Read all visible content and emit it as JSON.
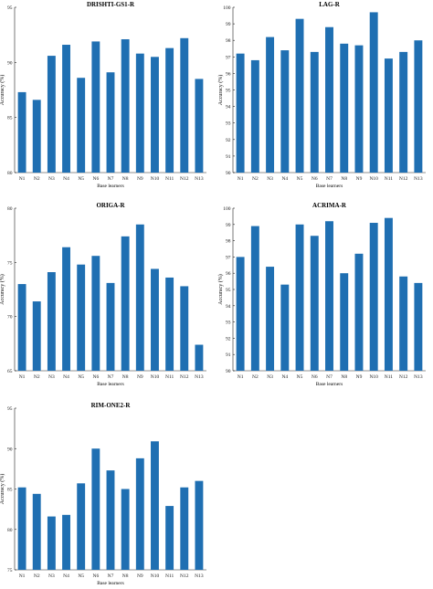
{
  "chart_data": [
    {
      "type": "bar",
      "title": "DRISHTI-GS1-R",
      "xlabel": "Base learners",
      "ylabel": "Accuracy (%)",
      "ylim": [
        80,
        95
      ],
      "yticks": [
        80,
        85,
        90,
        95
      ],
      "grid": false,
      "categories": [
        "N1",
        "N2",
        "N3",
        "N4",
        "N5",
        "N6",
        "N7",
        "N8",
        "N9",
        "N10",
        "N11",
        "N12",
        "N13"
      ],
      "values": [
        87.3,
        86.6,
        90.6,
        91.6,
        88.6,
        91.9,
        89.1,
        92.1,
        90.8,
        90.5,
        91.3,
        92.2,
        88.5
      ]
    },
    {
      "type": "bar",
      "title": "LAG-R",
      "xlabel": "Base learners",
      "ylabel": "Accuracy (%)",
      "ylim": [
        90,
        100
      ],
      "yticks": [
        90,
        91,
        92,
        93,
        94,
        95,
        96,
        97,
        98,
        99,
        100
      ],
      "grid": false,
      "categories": [
        "N1",
        "N2",
        "N3",
        "N4",
        "N5",
        "N6",
        "N7",
        "N8",
        "N9",
        "N10",
        "N11",
        "N12",
        "N13"
      ],
      "values": [
        97.2,
        96.8,
        98.2,
        97.4,
        99.3,
        97.3,
        98.8,
        97.8,
        97.7,
        99.7,
        96.9,
        97.3,
        98.0
      ]
    },
    {
      "type": "bar",
      "title": "ORIGA-R",
      "xlabel": "Base learners",
      "ylabel": "Accuracy (%)",
      "ylim": [
        65,
        80
      ],
      "yticks": [
        65,
        70,
        75,
        80
      ],
      "grid": false,
      "categories": [
        "N1",
        "N2",
        "N3",
        "N4",
        "N5",
        "N6",
        "N7",
        "N8",
        "N9",
        "N10",
        "N11",
        "N12",
        "N13"
      ],
      "values": [
        73.0,
        71.4,
        74.1,
        76.4,
        74.8,
        75.6,
        73.1,
        77.4,
        78.5,
        74.4,
        73.6,
        72.8,
        67.4
      ]
    },
    {
      "type": "bar",
      "title": "ACRIMA-R",
      "xlabel": "Base learners",
      "ylabel": "Accuracy (%)",
      "ylim": [
        90,
        100
      ],
      "yticks": [
        90,
        91,
        92,
        93,
        94,
        95,
        96,
        97,
        98,
        99,
        100
      ],
      "grid": false,
      "categories": [
        "N1",
        "N2",
        "N3",
        "N4",
        "N5",
        "N6",
        "N7",
        "N8",
        "N9",
        "N10",
        "N11",
        "N12",
        "N13"
      ],
      "values": [
        97.0,
        98.9,
        96.4,
        95.3,
        99.0,
        98.3,
        99.2,
        96.0,
        97.2,
        99.1,
        99.4,
        95.8,
        95.4
      ]
    },
    {
      "type": "bar",
      "title": "RIM-ONE2-R",
      "xlabel": "Base learners",
      "ylabel": "Accuracy (%)",
      "ylim": [
        75,
        95
      ],
      "yticks": [
        75,
        80,
        85,
        90,
        95
      ],
      "grid": false,
      "categories": [
        "N1",
        "N2",
        "N3",
        "N4",
        "N5",
        "N6",
        "N7",
        "N8",
        "N9",
        "N10",
        "N11",
        "N12",
        "N13"
      ],
      "values": [
        85.2,
        84.4,
        81.6,
        81.8,
        85.7,
        90.0,
        87.3,
        85.0,
        88.8,
        90.9,
        82.9,
        85.2,
        86.0
      ]
    }
  ],
  "colors": {
    "bar": "#1f6fb2",
    "axis": "#222222",
    "text": "#000000"
  }
}
